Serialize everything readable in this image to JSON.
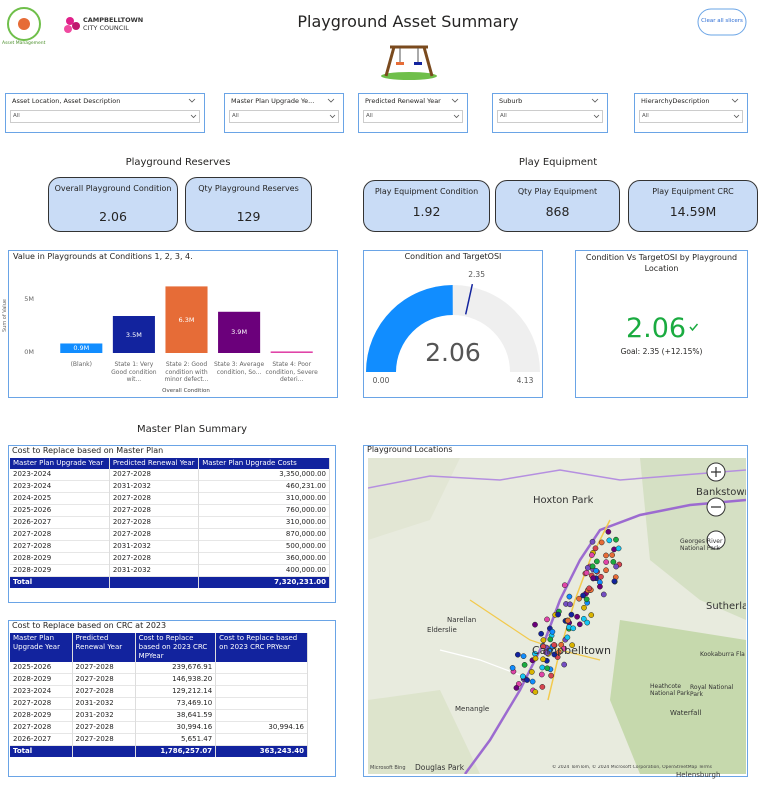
{
  "header": {
    "title": "Playground Asset Summary",
    "logo_left": "Asset Management",
    "logo_right_line1": "CAMPBELLTOWN",
    "logo_right_line2": "CITY COUNCIL",
    "button": "Clear all slicers"
  },
  "slicers": [
    {
      "label": "Asset Location, Asset Description",
      "value": "All"
    },
    {
      "label": "Master Plan Upgrade Ye...",
      "value": "All"
    },
    {
      "label": "Predicted Renewal Year",
      "value": "All"
    },
    {
      "label": "Suburb",
      "value": "All"
    },
    {
      "label": "HierarchyDescription",
      "value": "All"
    }
  ],
  "sections": {
    "reserves": "Playground Reserves",
    "equipment": "Play Equipment",
    "master_plan": "Master Plan Summary"
  },
  "cards": [
    {
      "label": "Overall Playground Condition",
      "value": 2.06
    },
    {
      "label": "Qty Playground Reserves",
      "value": 129
    },
    {
      "label": "Play Equipment Condition",
      "value": 1.92
    },
    {
      "label": "Qty Play Equipment",
      "value": 868
    },
    {
      "label": "Play Equipment CRC",
      "value": "14.59M"
    }
  ],
  "chart_data": [
    {
      "type": "bar",
      "title": "Value in Playgrounds at Conditions 1, 2, 3, 4.",
      "x_label": "Overall Condition",
      "y_label": "Sum of Value",
      "categories": [
        "(Blank)",
        "State 1: Very Good condition wit...",
        "State 2: Good condition with minor defect...",
        "State 3: Average condition, So...",
        "State 4: Poor condition, Severe deteri..."
      ],
      "values": [
        900000,
        3500000,
        6300000,
        3900000,
        150000
      ],
      "value_labels": [
        "0.9M",
        "3.5M",
        "6.3M",
        "3.9M",
        null
      ],
      "colors": [
        "#118dff",
        "#12239e",
        "#e66c37",
        "#6b007b",
        "#e044a7"
      ],
      "ylim": [
        0,
        7000000
      ],
      "yticks": [
        {
          "value": 0,
          "label": "0M"
        },
        {
          "value": 5000000,
          "label": "5M"
        }
      ]
    },
    {
      "type": "gauge",
      "title": "Condition and TargetOSI",
      "value": 2.06,
      "target": 2.35,
      "color": "#118dff",
      "ylim": [
        0,
        4.13
      ],
      "yticks": [
        {
          "value": 0,
          "label": "0.00"
        },
        4.13
      ]
    },
    {
      "type": "kpi",
      "title": "Condition Vs TargetOSI by Playground Location",
      "value": 2.06,
      "goal_label": "Goal: 2.35 (+12.15%)",
      "color": "#1aab40"
    }
  ],
  "tables": [
    {
      "title": "Cost to Replace based on Master Plan",
      "columns": [
        "Master Plan Upgrade Year",
        "Predicted Renewal Year",
        "Master Plan Upgrade Costs"
      ],
      "rows": [
        [
          "2023-2024",
          "2027-2028",
          "3,350,000.00"
        ],
        [
          "2023-2024",
          "2031-2032",
          "460,231.00"
        ],
        [
          "2024-2025",
          "2027-2028",
          "310,000.00"
        ],
        [
          "2025-2026",
          "2027-2028",
          "760,000.00"
        ],
        [
          "2026-2027",
          "2027-2028",
          "310,000.00"
        ],
        [
          "2027-2028",
          "2027-2028",
          "870,000.00"
        ],
        [
          "2027-2028",
          "2031-2032",
          "500,000.00"
        ],
        [
          "2028-2029",
          "2027-2028",
          "360,000.00"
        ],
        [
          "2028-2029",
          "2031-2032",
          "400,000.00"
        ]
      ],
      "total": [
        "Total",
        null,
        "7,320,231.00"
      ]
    },
    {
      "title": "Cost to Replace based on CRC at 2023",
      "columns": [
        "Master Plan Upgrade Year",
        "Predicted Renewal Year",
        "Cost to Replace based on 2023 CRC MPYear",
        "Cost to Replace based on 2023 CRC PRYear"
      ],
      "rows": [
        [
          "2025-2026",
          "2027-2028",
          "239,676.91",
          null
        ],
        [
          "2028-2029",
          "2027-2028",
          "146,938.20",
          null
        ],
        [
          "2023-2024",
          "2027-2028",
          "129,212.14",
          null
        ],
        [
          "2027-2028",
          "2031-2032",
          "73,469.10",
          null
        ],
        [
          "2028-2029",
          "2031-2032",
          "38,641.59",
          null
        ],
        [
          "2027-2028",
          "2027-2028",
          "30,994.16",
          "30,994.16"
        ],
        [
          "2026-2027",
          "2027-2028",
          "5,651.47",
          null
        ]
      ],
      "total": [
        "Total",
        null,
        "1,786,257.07",
        "363,243.40"
      ]
    }
  ],
  "map": {
    "title": "Playground Locations",
    "places": [
      "Hoxton Park",
      "Bankstown",
      "Narellan",
      "Elderslie",
      "Campbelltown",
      "Menangle",
      "Douglas Park",
      "Sutherla",
      "Georges River National Park",
      "Heathcote National Park",
      "Royal National Park",
      "Waterfall",
      "Kookaburra Fla",
      "Helensburgh"
    ],
    "provider": "Microsoft Bing",
    "attribution": "© 2024 TomTom, © 2024 Microsoft Corporation, OpenStreetMap Terms"
  }
}
